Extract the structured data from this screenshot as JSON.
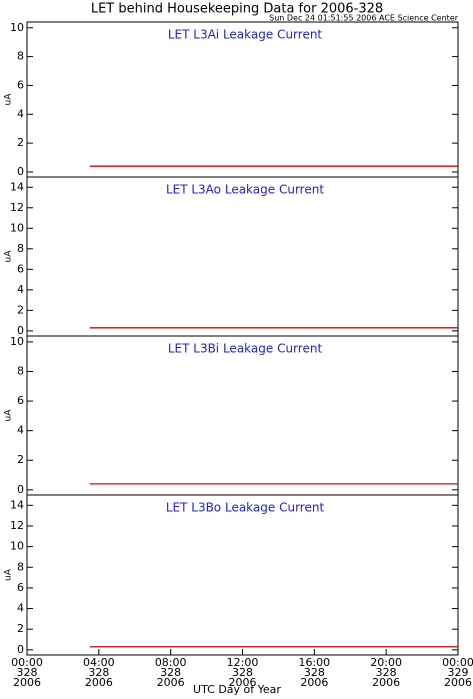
{
  "title": "LET behind Housekeeping Data for 2006-328",
  "subtitle": "Sun Dec 24 01:51:55 2006 ACE Science Center",
  "x_label": "UTC Day of Year",
  "chart_data": [
    {
      "type": "line",
      "title": "LET L3Ai Leakage Current",
      "y_label": "uA",
      "xlim": [
        0,
        24
      ],
      "ylim": [
        -0.35,
        10.4
      ],
      "yticks": [
        0,
        2,
        4,
        6,
        8,
        10
      ],
      "series": [
        {
          "color": "#e00000",
          "x": [
            3.5,
            24
          ],
          "values": [
            0.4,
            0.4
          ]
        }
      ]
    },
    {
      "type": "line",
      "title": "LET L3Ao Leakage Current",
      "y_label": "uA",
      "xlim": [
        0,
        24
      ],
      "ylim": [
        -0.5,
        15
      ],
      "yticks": [
        0,
        2,
        4,
        6,
        8,
        10,
        12,
        14
      ],
      "series": [
        {
          "color": "#e00000",
          "x": [
            3.5,
            24
          ],
          "values": [
            0.3,
            0.3
          ]
        }
      ]
    },
    {
      "type": "line",
      "title": "LET L3Bi Leakage Current",
      "y_label": "uA",
      "xlim": [
        0,
        24
      ],
      "ylim": [
        -0.35,
        10.4
      ],
      "yticks": [
        0,
        2,
        4,
        6,
        8,
        10
      ],
      "series": [
        {
          "color": "#e00000",
          "x": [
            3.5,
            24
          ],
          "values": [
            0.4,
            0.4
          ]
        }
      ]
    },
    {
      "type": "line",
      "title": "LET L3Bo Leakage Current",
      "y_label": "uA",
      "xlim": [
        0,
        24
      ],
      "ylim": [
        -0.5,
        15
      ],
      "yticks": [
        0,
        2,
        4,
        6,
        8,
        10,
        12,
        14
      ],
      "series": [
        {
          "color": "#e00000",
          "x": [
            3.5,
            24
          ],
          "values": [
            0.3,
            0.3
          ]
        }
      ],
      "xticks": [
        {
          "value": 0,
          "label": [
            "00:00",
            "328",
            "2006"
          ]
        },
        {
          "value": 4,
          "label": [
            "04:00",
            "328",
            "2006"
          ]
        },
        {
          "value": 8,
          "label": [
            "08:00",
            "328",
            "2006"
          ]
        },
        {
          "value": 12,
          "label": [
            "12:00",
            "328",
            "2006"
          ]
        },
        {
          "value": 16,
          "label": [
            "16:00",
            "328",
            "2006"
          ]
        },
        {
          "value": 20,
          "label": [
            "20:00",
            "328",
            "2006"
          ]
        },
        {
          "value": 24,
          "label": [
            "00:00",
            "329",
            "2006"
          ]
        }
      ]
    }
  ]
}
